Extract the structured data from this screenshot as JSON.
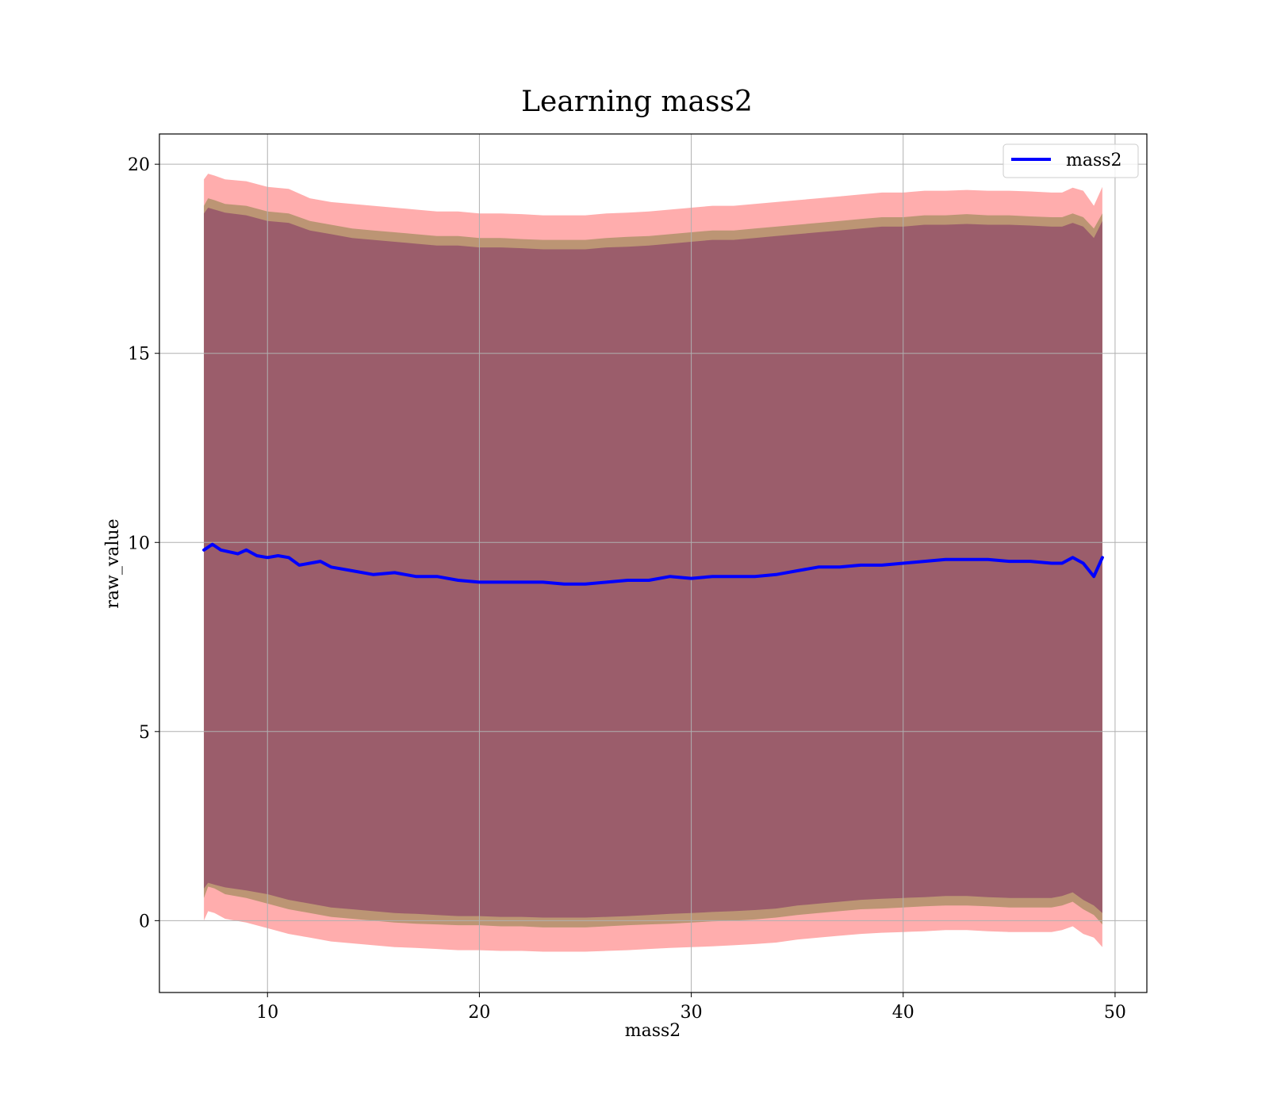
{
  "chart_data": {
    "type": "line",
    "title": "Learning mass2",
    "xlabel": "mass2",
    "ylabel": "raw_value",
    "xlim": [
      4.9,
      51.5
    ],
    "ylim": [
      -1.9,
      20.8
    ],
    "xticks": [
      10,
      20,
      30,
      40,
      50
    ],
    "yticks": [
      0,
      5,
      10,
      15,
      20
    ],
    "xtick_labels": [
      "10",
      "20",
      "30",
      "40",
      "50"
    ],
    "ytick_labels": [
      "0",
      "5",
      "10",
      "15",
      "20"
    ],
    "grid": true,
    "legend_position": "top-right",
    "colors": {
      "line": "#0000ff",
      "outer_band": "#ff0000",
      "inner_band": "#b0906a",
      "core_band": "#96556a",
      "grid": "#b0b0b0"
    },
    "series": [
      {
        "name": "mass2",
        "x": [
          7.0,
          7.4,
          7.8,
          8.2,
          8.6,
          9.0,
          9.5,
          10.0,
          10.5,
          11.0,
          11.5,
          12.0,
          12.5,
          13.0,
          14.0,
          15.0,
          16.0,
          17.0,
          18.0,
          19.0,
          20.0,
          21.0,
          22.0,
          23.0,
          24.0,
          25.0,
          26.0,
          27.0,
          28.0,
          29.0,
          30.0,
          31.0,
          32.0,
          33.0,
          34.0,
          35.0,
          36.0,
          37.0,
          38.0,
          39.0,
          40.0,
          41.0,
          42.0,
          43.0,
          44.0,
          45.0,
          46.0,
          47.0,
          47.5,
          48.0,
          48.5,
          49.0,
          49.4
        ],
        "y": [
          9.8,
          9.95,
          9.8,
          9.75,
          9.7,
          9.8,
          9.65,
          9.6,
          9.65,
          9.6,
          9.4,
          9.45,
          9.5,
          9.35,
          9.25,
          9.15,
          9.2,
          9.1,
          9.1,
          9.0,
          8.95,
          8.95,
          8.95,
          8.95,
          8.9,
          8.9,
          8.95,
          9.0,
          9.0,
          9.1,
          9.05,
          9.1,
          9.1,
          9.1,
          9.15,
          9.25,
          9.35,
          9.35,
          9.4,
          9.4,
          9.45,
          9.5,
          9.55,
          9.55,
          9.55,
          9.5,
          9.5,
          9.45,
          9.45,
          9.6,
          9.45,
          9.1,
          9.6
        ]
      }
    ],
    "bands": {
      "x": [
        7.0,
        7.2,
        7.5,
        8.0,
        9.0,
        10.0,
        11.0,
        12.0,
        13.0,
        14.0,
        15.0,
        16.0,
        17.0,
        18.0,
        19.0,
        20.0,
        21.0,
        22.0,
        23.0,
        24.0,
        25.0,
        26.0,
        27.0,
        28.0,
        29.0,
        30.0,
        31.0,
        32.0,
        33.0,
        34.0,
        35.0,
        36.0,
        37.0,
        38.0,
        39.0,
        40.0,
        41.0,
        42.0,
        43.0,
        44.0,
        45.0,
        46.0,
        47.0,
        47.5,
        48.0,
        48.5,
        49.0,
        49.4
      ],
      "outer_upper": [
        19.6,
        19.75,
        19.7,
        19.6,
        19.55,
        19.4,
        19.35,
        19.1,
        19.0,
        18.95,
        18.9,
        18.85,
        18.8,
        18.75,
        18.75,
        18.7,
        18.7,
        18.68,
        18.65,
        18.65,
        18.65,
        18.7,
        18.72,
        18.75,
        18.8,
        18.85,
        18.9,
        18.9,
        18.95,
        19.0,
        19.05,
        19.1,
        19.15,
        19.2,
        19.25,
        19.25,
        19.3,
        19.3,
        19.32,
        19.3,
        19.3,
        19.28,
        19.25,
        19.25,
        19.38,
        19.3,
        18.9,
        19.4
      ],
      "outer_lower": [
        0.0,
        0.25,
        0.2,
        0.05,
        -0.05,
        -0.2,
        -0.35,
        -0.45,
        -0.55,
        -0.6,
        -0.65,
        -0.7,
        -0.72,
        -0.75,
        -0.78,
        -0.78,
        -0.8,
        -0.8,
        -0.82,
        -0.82,
        -0.82,
        -0.8,
        -0.78,
        -0.75,
        -0.72,
        -0.7,
        -0.68,
        -0.65,
        -0.62,
        -0.58,
        -0.5,
        -0.45,
        -0.4,
        -0.35,
        -0.32,
        -0.3,
        -0.28,
        -0.25,
        -0.25,
        -0.28,
        -0.3,
        -0.3,
        -0.3,
        -0.25,
        -0.15,
        -0.35,
        -0.45,
        -0.7
      ],
      "inner_upper": [
        18.9,
        19.1,
        19.05,
        18.95,
        18.9,
        18.75,
        18.7,
        18.5,
        18.4,
        18.3,
        18.25,
        18.2,
        18.15,
        18.1,
        18.1,
        18.05,
        18.05,
        18.02,
        18.0,
        18.0,
        18.0,
        18.05,
        18.08,
        18.1,
        18.15,
        18.2,
        18.25,
        18.25,
        18.3,
        18.35,
        18.4,
        18.45,
        18.5,
        18.55,
        18.6,
        18.6,
        18.65,
        18.65,
        18.68,
        18.65,
        18.65,
        18.62,
        18.6,
        18.6,
        18.7,
        18.6,
        18.3,
        18.7
      ],
      "inner_lower": [
        0.6,
        0.9,
        0.85,
        0.7,
        0.6,
        0.45,
        0.3,
        0.2,
        0.1,
        0.05,
        0.0,
        -0.05,
        -0.08,
        -0.1,
        -0.12,
        -0.12,
        -0.15,
        -0.15,
        -0.18,
        -0.18,
        -0.18,
        -0.15,
        -0.12,
        -0.1,
        -0.08,
        -0.05,
        -0.02,
        0.0,
        0.03,
        0.08,
        0.15,
        0.2,
        0.25,
        0.3,
        0.32,
        0.35,
        0.38,
        0.4,
        0.4,
        0.38,
        0.35,
        0.35,
        0.35,
        0.4,
        0.5,
        0.3,
        0.15,
        -0.1
      ],
      "core_upper": [
        18.7,
        18.85,
        18.8,
        18.72,
        18.65,
        18.5,
        18.45,
        18.25,
        18.15,
        18.05,
        18.0,
        17.95,
        17.9,
        17.85,
        17.85,
        17.8,
        17.8,
        17.78,
        17.75,
        17.75,
        17.75,
        17.8,
        17.82,
        17.85,
        17.9,
        17.95,
        18.0,
        18.0,
        18.05,
        18.1,
        18.15,
        18.2,
        18.25,
        18.3,
        18.35,
        18.35,
        18.4,
        18.4,
        18.42,
        18.4,
        18.4,
        18.38,
        18.35,
        18.35,
        18.45,
        18.35,
        18.05,
        18.5
      ],
      "core_lower": [
        0.85,
        1.0,
        0.95,
        0.88,
        0.8,
        0.7,
        0.55,
        0.45,
        0.35,
        0.3,
        0.25,
        0.2,
        0.18,
        0.15,
        0.12,
        0.12,
        0.1,
        0.1,
        0.08,
        0.08,
        0.08,
        0.1,
        0.12,
        0.15,
        0.18,
        0.2,
        0.23,
        0.25,
        0.28,
        0.32,
        0.4,
        0.45,
        0.5,
        0.55,
        0.58,
        0.6,
        0.62,
        0.65,
        0.65,
        0.62,
        0.6,
        0.6,
        0.6,
        0.65,
        0.75,
        0.55,
        0.4,
        0.2
      ]
    }
  }
}
